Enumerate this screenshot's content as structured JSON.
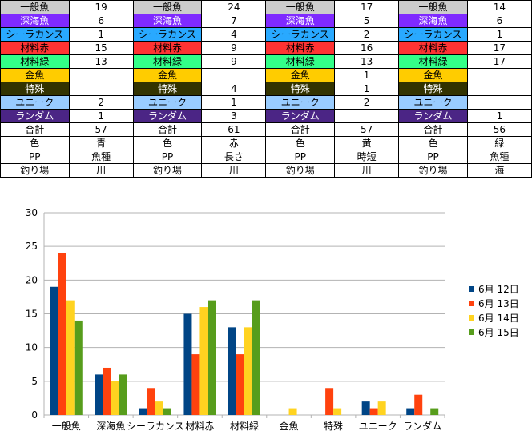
{
  "table": {
    "rows": [
      {
        "kind": "fish",
        "labels": [
          "一般魚",
          "一般魚",
          "一般魚",
          "一般魚"
        ],
        "values": [
          "19",
          "24",
          "17",
          "14"
        ],
        "bg": "#cccccc",
        "fg": "#000000"
      },
      {
        "kind": "fish",
        "labels": [
          "深海魚",
          "深海魚",
          "深海魚",
          "深海魚"
        ],
        "values": [
          "6",
          "7",
          "5",
          "6"
        ],
        "bg": "#7f2aff",
        "fg": "#ffffff"
      },
      {
        "kind": "fish",
        "labels": [
          "シーラカンス",
          "シーラカンス",
          "シーラカンス",
          "シーラカンス"
        ],
        "values": [
          "1",
          "4",
          "2",
          "1"
        ],
        "bg": "#29a9ff",
        "fg": "#000000"
      },
      {
        "kind": "fish",
        "labels": [
          "材料赤",
          "材料赤",
          "材料赤",
          "材料赤"
        ],
        "values": [
          "15",
          "9",
          "16",
          "17"
        ],
        "bg": "#ff3333",
        "fg": "#000000"
      },
      {
        "kind": "fish",
        "labels": [
          "材料緑",
          "材料緑",
          "材料緑",
          "材料緑"
        ],
        "values": [
          "13",
          "9",
          "13",
          "17"
        ],
        "bg": "#33ff88",
        "fg": "#000000"
      },
      {
        "kind": "fish",
        "labels": [
          "金魚",
          "金魚",
          "金魚",
          "金魚"
        ],
        "values": [
          "",
          "",
          "1",
          ""
        ],
        "bg": "#ffcc00",
        "fg": "#000000"
      },
      {
        "kind": "fish",
        "labels": [
          "特殊",
          "特殊",
          "特殊",
          "特殊"
        ],
        "values": [
          "",
          "4",
          "1",
          ""
        ],
        "bg": "#333300",
        "fg": "#ffffff"
      },
      {
        "kind": "fish",
        "labels": [
          "ユニーク",
          "ユニーク",
          "ユニーク",
          "ユニーク"
        ],
        "values": [
          "2",
          "1",
          "2",
          ""
        ],
        "bg": "#99ccff",
        "fg": "#000000"
      },
      {
        "kind": "fish",
        "labels": [
          "ランダム",
          "ランダム",
          "ランダム",
          "ランダム"
        ],
        "values": [
          "1",
          "3",
          "",
          "1"
        ],
        "bg": "#4b2585",
        "fg": "#ffffff"
      },
      {
        "kind": "plain",
        "labels": [
          "合計",
          "合計",
          "合計",
          "合計"
        ],
        "values": [
          "57",
          "61",
          "57",
          "56"
        ]
      },
      {
        "kind": "plain",
        "labels": [
          "色",
          "色",
          "色",
          "色"
        ],
        "values": [
          "青",
          "赤",
          "黄",
          "緑"
        ]
      },
      {
        "kind": "plain",
        "labels": [
          "PP",
          "PP",
          "PP",
          "PP"
        ],
        "values": [
          "魚種",
          "長さ",
          "時短",
          "魚種"
        ]
      },
      {
        "kind": "plain",
        "labels": [
          "釣り場",
          "釣り場",
          "釣り場",
          "釣り場"
        ],
        "values": [
          "川",
          "川",
          "川",
          "海"
        ]
      }
    ]
  },
  "chart_data": {
    "type": "bar",
    "categories": [
      "一般魚",
      "深海魚",
      "シーラカンス",
      "材料赤",
      "材料緑",
      "金魚",
      "特殊",
      "ユニーク",
      "ランダム"
    ],
    "ylim": [
      0,
      30
    ],
    "yticks": [
      "0",
      "5",
      "10",
      "15",
      "20",
      "25",
      "30"
    ],
    "grid": true,
    "legend_position": "right",
    "series": [
      {
        "name": "6月 12日",
        "color": "#004586",
        "values": [
          19,
          6,
          1,
          15,
          13,
          0,
          0,
          2,
          1
        ]
      },
      {
        "name": "6月 13日",
        "color": "#ff420e",
        "values": [
          24,
          7,
          4,
          9,
          9,
          0,
          4,
          1,
          3
        ]
      },
      {
        "name": "6月 14日",
        "color": "#ffd320",
        "values": [
          17,
          5,
          2,
          16,
          13,
          1,
          1,
          2,
          0
        ]
      },
      {
        "name": "6月 15日",
        "color": "#579d1c",
        "values": [
          14,
          6,
          1,
          17,
          17,
          0,
          0,
          0,
          1
        ]
      }
    ]
  }
}
